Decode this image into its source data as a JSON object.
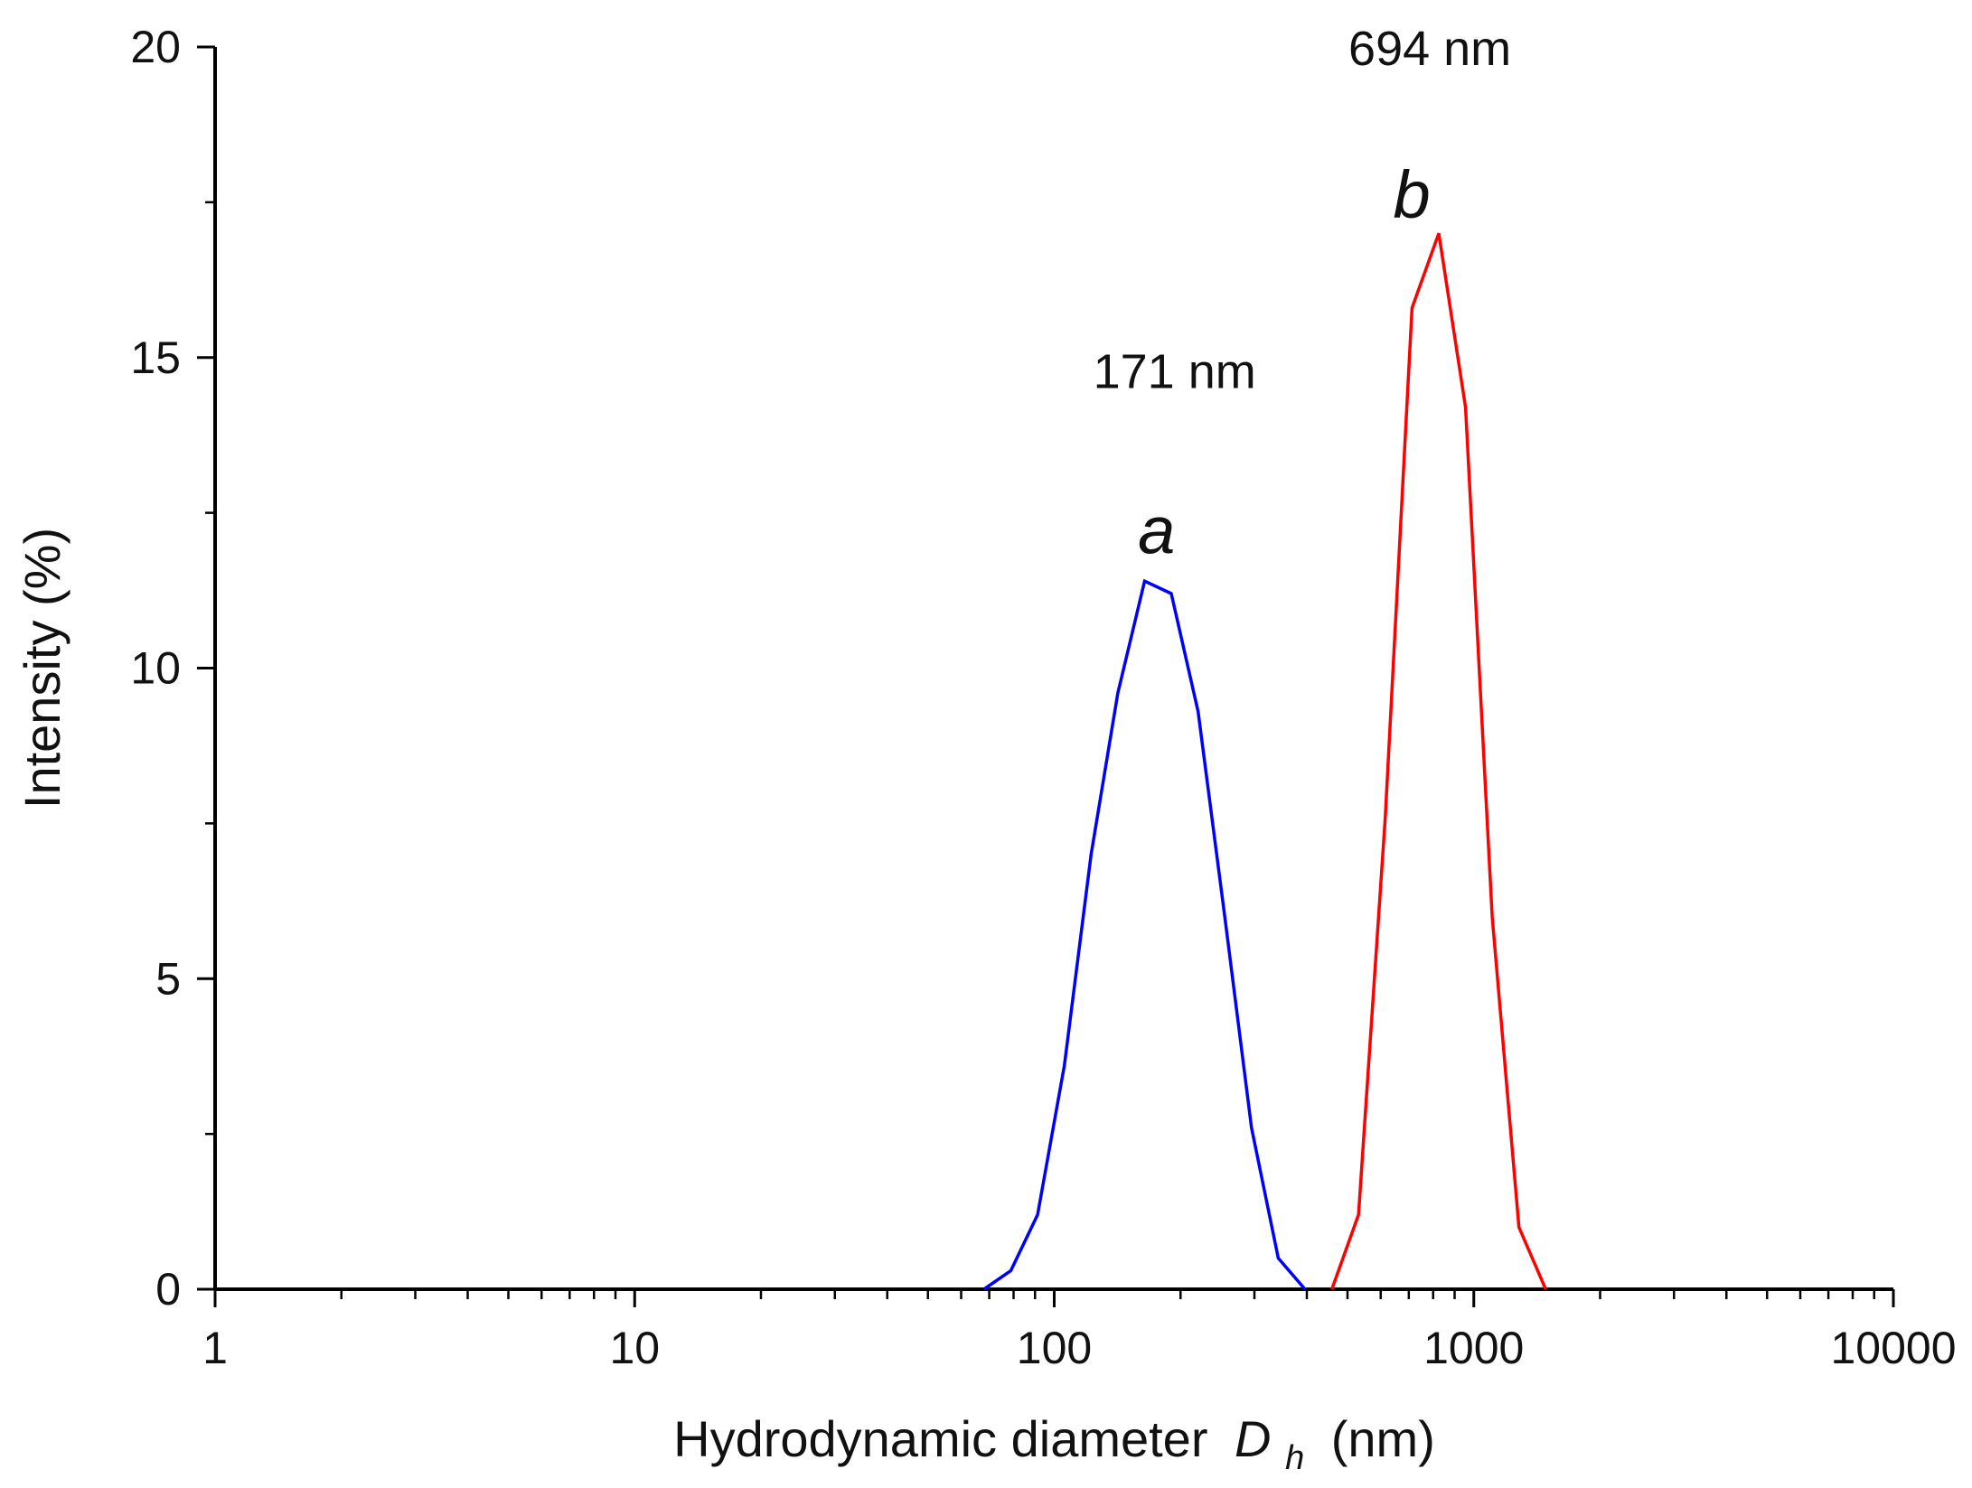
{
  "chart_data": {
    "type": "line",
    "xlabel": "Hydrodynamic diameter",
    "xlabel_symbol": "D",
    "xlabel_subscript": "h",
    "xlabel_unit": "(nm)",
    "ylabel": "Intensity (%)",
    "x_scale": "log",
    "xlim": [
      1,
      10000
    ],
    "ylim": [
      0,
      20
    ],
    "x_ticks": [
      1,
      10,
      100,
      1000,
      10000
    ],
    "x_tick_labels": [
      "1",
      "10",
      "100",
      "1000",
      "10000"
    ],
    "y_ticks": [
      0,
      5,
      10,
      15,
      20
    ],
    "y_tick_labels": [
      "0",
      "5",
      "10",
      "15",
      "20"
    ],
    "grid": false,
    "series": [
      {
        "name": "a",
        "color": "#0000ff",
        "x": [
          68,
          78.8,
          91.3,
          105.7,
          122.4,
          141.8,
          164.2,
          190.1,
          220.2,
          255,
          295.3,
          342,
          396.1
        ],
        "y": [
          0,
          0.3,
          1.2,
          3.6,
          7.0,
          9.6,
          11.4,
          11.2,
          9.3,
          6.0,
          2.6,
          0.5,
          0
        ]
      },
      {
        "name": "b",
        "color": "#ff0000",
        "x": [
          459,
          531.2,
          615.1,
          712.4,
          825,
          955.4,
          1106.4,
          1281.2,
          1484
        ],
        "y": [
          0,
          1.2,
          7.6,
          15.8,
          17.0,
          14.2,
          6.0,
          1.0,
          0
        ]
      }
    ],
    "annotations": [
      {
        "label": "a",
        "value": "171 nm",
        "x": 171,
        "y_label": 12.2,
        "y_value": 14.8
      },
      {
        "label": "b",
        "value": "694 nm",
        "x": 694,
        "y_label": 17.6,
        "y_value": 20
      }
    ]
  }
}
